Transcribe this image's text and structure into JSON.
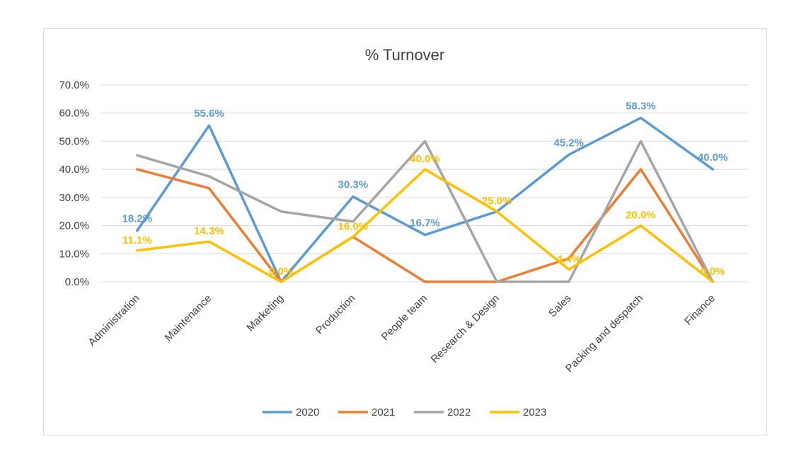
{
  "chart_data": {
    "type": "line",
    "title": "% Turnover",
    "categories": [
      "Administration",
      "Maintenance",
      "Marketing",
      "Production",
      "People team",
      "Research & Design",
      "Sales",
      "Packing and despatch",
      "Finance"
    ],
    "ylim": [
      0,
      70
    ],
    "yticks": [
      0,
      10,
      20,
      30,
      40,
      50,
      60,
      70
    ],
    "ytick_labels": [
      "0.0%",
      "10.0%",
      "20.0%",
      "30.0%",
      "40.0%",
      "50.0%",
      "60.0%",
      "70.0%"
    ],
    "grid": true,
    "legend_position": "bottom",
    "series": [
      {
        "name": "2020",
        "color": "#5b9bd5",
        "values": [
          18.2,
          55.6,
          0.0,
          30.3,
          16.7,
          25.0,
          45.2,
          58.3,
          40.0
        ],
        "labels": [
          "18.2%",
          "55.6%",
          "",
          "30.3%",
          "16.7%",
          "",
          "45.2%",
          "58.3%",
          "40.0%"
        ]
      },
      {
        "name": "2021",
        "color": "#ed7d31",
        "values": [
          40.0,
          33.3,
          0.0,
          16.0,
          0.0,
          0.0,
          8.3,
          40.0,
          0.0
        ],
        "labels": [
          "",
          "",
          "",
          "",
          "",
          "",
          "",
          "",
          ""
        ]
      },
      {
        "name": "2022",
        "color": "#a5a5a5",
        "values": [
          45.0,
          37.5,
          25.0,
          21.4,
          50.0,
          0.0,
          0.0,
          50.0,
          0.0
        ],
        "labels": [
          "",
          "",
          "",
          "",
          "",
          "",
          "",
          "",
          ""
        ]
      },
      {
        "name": "2023",
        "color": "#ffc000",
        "values": [
          11.1,
          14.3,
          0.0,
          16.0,
          40.0,
          25.0,
          4.4,
          20.0,
          0.0
        ],
        "labels": [
          "11.1%",
          "14.3%",
          "0.0%",
          "16.0%",
          "40.0%",
          "25.0%",
          "4.4%",
          "20.0%",
          "0.0%"
        ]
      }
    ]
  }
}
